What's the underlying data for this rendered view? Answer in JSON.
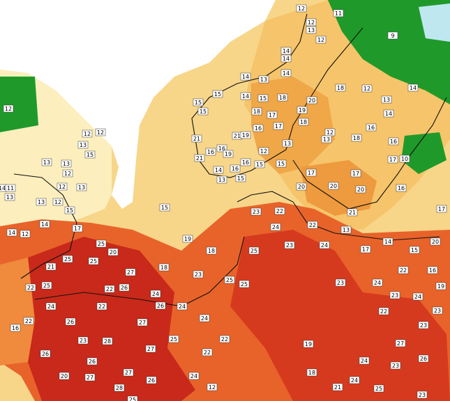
{
  "map": {
    "station_labels": [
      12,
      11,
      9,
      12,
      12,
      13,
      14,
      14,
      14,
      14,
      13,
      12,
      18,
      14,
      15,
      14,
      15,
      20,
      18,
      13,
      12,
      15,
      15,
      18,
      17,
      19,
      14,
      17,
      18,
      16,
      16,
      12,
      12,
      12,
      21,
      21,
      19,
      13,
      18,
      16,
      13,
      15,
      16,
      16,
      19,
      12,
      13,
      21,
      13,
      13,
      16,
      15,
      15,
      10,
      17,
      17,
      17,
      14,
      16,
      12,
      14,
      11,
      13,
      13,
      15,
      12,
      13,
      20,
      20,
      20,
      16,
      13,
      12,
      15,
      15,
      23,
      22,
      21,
      17,
      24,
      22,
      13,
      14,
      12,
      14,
      17,
      19,
      14,
      20,
      18,
      25,
      23,
      24,
      17,
      15,
      25,
      20,
      25,
      25,
      18,
      22,
      16,
      27,
      21,
      23,
      25,
      25,
      23,
      24,
      19,
      22,
      25,
      22,
      26,
      24,
      23,
      24,
      24,
      22,
      26,
      24,
      24,
      22,
      23,
      22,
      26,
      27,
      23,
      16,
      23,
      28,
      25,
      22,
      19,
      27,
      27,
      22,
      26,
      26,
      24,
      23,
      26,
      27,
      20,
      26,
      24,
      18,
      24,
      27,
      28,
      12,
      21,
      25,
      25,
      23
    ]
  }
}
